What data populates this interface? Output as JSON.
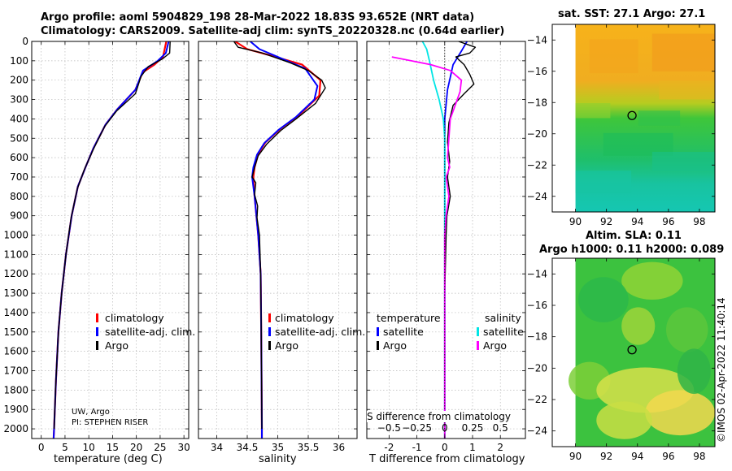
{
  "header": {
    "title_line1": "Argo profile: aoml 5904829_198 28-Mar-2022 18.83S 93.652E (NRT data)",
    "title_line2": "Climatology: CARS2009. Satellite-adj clim: synTS_20220328.nc (0.64d earlier)"
  },
  "credits": {
    "source": "UW, Argo",
    "pi": "PI: STEPHEN RISER",
    "stamp": "©IMOS 02-Apr-2022 11:40:14"
  },
  "colors": {
    "climatology": "#ff0000",
    "satellite_adj": "#0000ff",
    "argo": "#000000",
    "satellite": "#00e5e5",
    "salinity_argo": "#ff00ff"
  },
  "chart_data": [
    {
      "type": "line",
      "id": "temperature",
      "xlabel": "temperature (deg C)",
      "ylabel": "",
      "xlim": [
        -2,
        31
      ],
      "ylim": [
        2050,
        0
      ],
      "xticks": [
        0,
        5,
        10,
        15,
        20,
        25,
        30
      ],
      "yticks": [
        0,
        100,
        200,
        300,
        400,
        500,
        600,
        700,
        800,
        900,
        1000,
        1100,
        1200,
        1300,
        1400,
        1500,
        1600,
        1700,
        1800,
        1900,
        2000
      ],
      "legend": [
        "climatology",
        "satellite-adj. clim.",
        "Argo"
      ],
      "legend_position": "lower-right",
      "series": [
        {
          "name": "climatology",
          "color": "#ff0000",
          "width": 2.2,
          "points": [
            [
              26.3,
              0
            ],
            [
              25.6,
              80
            ],
            [
              23.8,
              120
            ],
            [
              21.3,
              160
            ],
            [
              19.8,
              250
            ],
            [
              16.0,
              350
            ],
            [
              13.5,
              430
            ],
            [
              11.0,
              550
            ],
            [
              9.3,
              650
            ],
            [
              7.7,
              750
            ],
            [
              6.4,
              900
            ],
            [
              5.2,
              1100
            ],
            [
              4.3,
              1300
            ],
            [
              3.6,
              1500
            ],
            [
              3.1,
              1750
            ],
            [
              2.7,
              2000
            ],
            [
              2.6,
              2050
            ]
          ]
        },
        {
          "name": "satellite-adj. clim.",
          "color": "#0000ff",
          "width": 2,
          "points": [
            [
              26.8,
              0
            ],
            [
              26.2,
              60
            ],
            [
              24.5,
              100
            ],
            [
              21.4,
              150
            ],
            [
              19.8,
              250
            ],
            [
              16.0,
              350
            ],
            [
              13.5,
              430
            ],
            [
              11.0,
              550
            ],
            [
              9.3,
              650
            ],
            [
              7.7,
              750
            ],
            [
              6.4,
              900
            ],
            [
              5.2,
              1100
            ],
            [
              4.3,
              1300
            ],
            [
              3.6,
              1500
            ],
            [
              3.1,
              1750
            ],
            [
              2.7,
              2000
            ],
            [
              2.6,
              2050
            ]
          ]
        },
        {
          "name": "Argo",
          "color": "#000000",
          "width": 1.4,
          "points": [
            [
              27.1,
              0
            ],
            [
              27.0,
              60
            ],
            [
              25.5,
              90
            ],
            [
              22.5,
              130
            ],
            [
              21.0,
              180
            ],
            [
              19.8,
              270
            ],
            [
              15.8,
              360
            ],
            [
              13.3,
              440
            ],
            [
              10.9,
              560
            ],
            [
              9.1,
              660
            ],
            [
              7.6,
              760
            ],
            [
              6.3,
              910
            ],
            [
              5.2,
              1100
            ],
            [
              4.3,
              1300
            ],
            [
              3.6,
              1500
            ],
            [
              3.1,
              1750
            ],
            [
              2.7,
              2000
            ]
          ]
        }
      ]
    },
    {
      "type": "line",
      "id": "salinity",
      "xlabel": "salinity",
      "ylabel": "",
      "xlim": [
        33.7,
        36.3
      ],
      "ylim": [
        2050,
        0
      ],
      "xticks": [
        34,
        34.5,
        35,
        35.5,
        36
      ],
      "legend": [
        "climatology",
        "satellite-adj. clim.",
        "Argo"
      ],
      "legend_position": "lower-right",
      "series": [
        {
          "name": "climatology",
          "color": "#ff0000",
          "width": 2.2,
          "points": [
            [
              34.3,
              0
            ],
            [
              34.5,
              40
            ],
            [
              34.85,
              70
            ],
            [
              35.4,
              120
            ],
            [
              35.7,
              200
            ],
            [
              35.68,
              280
            ],
            [
              35.35,
              380
            ],
            [
              35.05,
              450
            ],
            [
              34.8,
              520
            ],
            [
              34.68,
              580
            ],
            [
              34.62,
              650
            ],
            [
              34.6,
              700
            ],
            [
              34.62,
              800
            ],
            [
              34.68,
              1000
            ],
            [
              34.72,
              1200
            ],
            [
              34.73,
              1500
            ],
            [
              34.74,
              2000
            ],
            [
              34.74,
              2050
            ]
          ]
        },
        {
          "name": "satellite-adj. clim.",
          "color": "#0000ff",
          "width": 2,
          "points": [
            [
              34.55,
              0
            ],
            [
              34.7,
              40
            ],
            [
              35.0,
              80
            ],
            [
              35.45,
              140
            ],
            [
              35.65,
              230
            ],
            [
              35.6,
              300
            ],
            [
              35.3,
              390
            ],
            [
              35.02,
              455
            ],
            [
              34.78,
              525
            ],
            [
              34.66,
              585
            ],
            [
              34.6,
              650
            ],
            [
              34.58,
              700
            ],
            [
              34.62,
              800
            ],
            [
              34.68,
              1000
            ],
            [
              34.72,
              1200
            ],
            [
              34.73,
              1500
            ],
            [
              34.74,
              2000
            ],
            [
              34.74,
              2050
            ]
          ]
        },
        {
          "name": "Argo",
          "color": "#000000",
          "width": 1.4,
          "points": [
            [
              34.28,
              0
            ],
            [
              34.35,
              30
            ],
            [
              34.75,
              60
            ],
            [
              35.2,
              110
            ],
            [
              35.5,
              150
            ],
            [
              35.72,
              200
            ],
            [
              35.78,
              240
            ],
            [
              35.62,
              320
            ],
            [
              35.3,
              400
            ],
            [
              35.05,
              460
            ],
            [
              34.82,
              530
            ],
            [
              34.68,
              590
            ],
            [
              34.62,
              650
            ],
            [
              34.58,
              700
            ],
            [
              34.64,
              730
            ],
            [
              34.62,
              790
            ],
            [
              34.67,
              850
            ],
            [
              34.66,
              910
            ],
            [
              34.7,
              1000
            ],
            [
              34.72,
              1200
            ],
            [
              34.73,
              1500
            ],
            [
              34.74,
              2000
            ]
          ]
        }
      ]
    },
    {
      "type": "line",
      "id": "differences",
      "xlabel": "T difference from climatology",
      "xlabel_top": "S difference from climatology",
      "xlim": [
        -2.8,
        2.9
      ],
      "ylim": [
        2050,
        0
      ],
      "xticks_T": [
        -2,
        -1,
        0,
        1,
        2
      ],
      "xticks_S": [
        -0.5,
        -0.25,
        0,
        0.25,
        0.5
      ],
      "legend_groups": [
        {
          "title": "temperature",
          "entries": [
            "satellite",
            "Argo"
          ]
        },
        {
          "title": "salinity",
          "entries": [
            "satellite",
            "Argo"
          ]
        }
      ],
      "series": [
        {
          "name": "T satellite",
          "color": "#0000ff",
          "width": 1.8,
          "points": [
            [
              0.8,
              0
            ],
            [
              0.6,
              50
            ],
            [
              0.3,
              120
            ],
            [
              0.1,
              250
            ],
            [
              0,
              400
            ],
            [
              0,
              1000
            ],
            [
              0,
              2050
            ]
          ]
        },
        {
          "name": "S satellite",
          "color": "#00e5e5",
          "width": 1.8,
          "points": [
            [
              -0.8,
              0
            ],
            [
              -0.65,
              40
            ],
            [
              -0.55,
              100
            ],
            [
              -0.4,
              200
            ],
            [
              -0.2,
              300
            ],
            [
              -0.05,
              400
            ],
            [
              0,
              500
            ],
            [
              0,
              1000
            ],
            [
              0,
              2050
            ]
          ]
        },
        {
          "name": "T Argo",
          "color": "#000000",
          "width": 1.4,
          "points": [
            [
              0.5,
              0
            ],
            [
              1.1,
              30
            ],
            [
              0.9,
              60
            ],
            [
              0.4,
              80
            ],
            [
              0.7,
              120
            ],
            [
              0.9,
              170
            ],
            [
              1.05,
              220
            ],
            [
              0.7,
              270
            ],
            [
              0.3,
              330
            ],
            [
              0.15,
              420
            ],
            [
              0.1,
              520
            ],
            [
              0.18,
              620
            ],
            [
              0.1,
              700
            ],
            [
              0.2,
              800
            ],
            [
              0.08,
              900
            ],
            [
              0.05,
              1000
            ],
            [
              0,
              1300
            ],
            [
              0,
              2050
            ]
          ]
        },
        {
          "name": "S Argo",
          "color": "#ff00ff",
          "width": 1.8,
          "points": [
            [
              -1.9,
              80
            ],
            [
              -0.5,
              120
            ],
            [
              0.2,
              150
            ],
            [
              0.6,
              200
            ],
            [
              0.55,
              260
            ],
            [
              0.4,
              320
            ],
            [
              0.2,
              400
            ],
            [
              0.15,
              500
            ],
            [
              0.1,
              600
            ],
            [
              0.18,
              650
            ],
            [
              0.05,
              700
            ],
            [
              0.15,
              800
            ],
            [
              0.05,
              900
            ],
            [
              0,
              1000
            ],
            [
              0,
              2050
            ]
          ]
        }
      ]
    },
    {
      "type": "heatmap",
      "id": "sst_map",
      "title": "sat. SST: 27.1 Argo: 27.1",
      "xticks": [
        90,
        92,
        94,
        96,
        98
      ],
      "yticks": [
        -14,
        -16,
        -18,
        -20,
        -22,
        -24
      ],
      "xlim": [
        88.5,
        99
      ],
      "ylim": [
        -25,
        -13
      ],
      "float_position": [
        93.65,
        -18.83
      ]
    },
    {
      "type": "heatmap",
      "id": "sla_map",
      "title_line1": "Altim. SLA: 0.11",
      "title_line2": "Argo h1000: 0.11 h2000: 0.089",
      "xticks": [
        90,
        92,
        94,
        96,
        98
      ],
      "yticks": [
        -14,
        -16,
        -18,
        -20,
        -22,
        -24
      ],
      "xlim": [
        88.5,
        99
      ],
      "ylim": [
        -25,
        -13
      ],
      "float_position": [
        93.65,
        -18.83
      ]
    }
  ]
}
